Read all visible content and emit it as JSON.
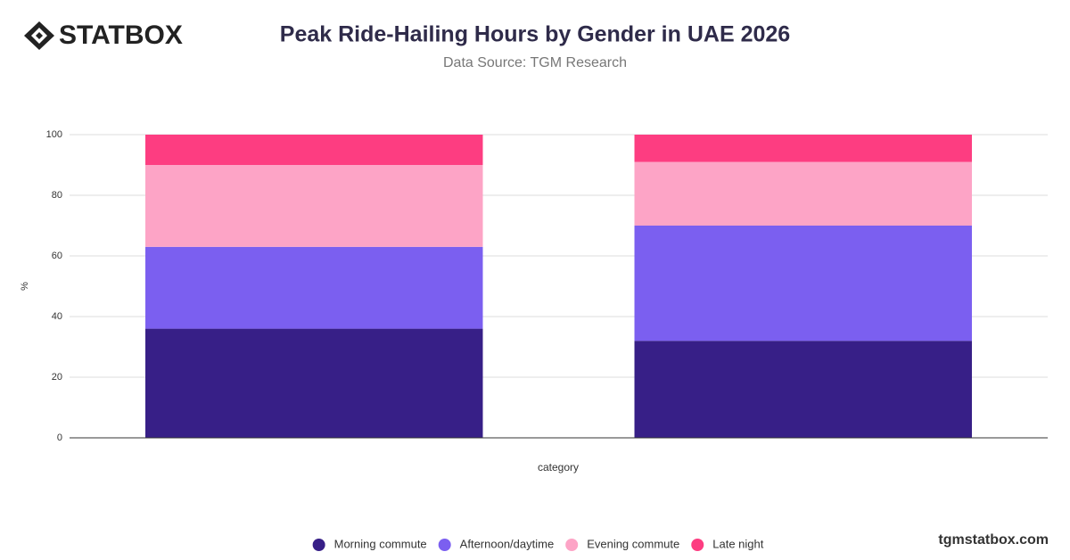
{
  "logo": "STATBOX",
  "footer": "tgmstatbox.com",
  "chart_data": {
    "type": "stacked-bar",
    "title": "Peak Ride-Hailing Hours by Gender in UAE 2026",
    "subtitle": "Data Source: TGM Research",
    "x_label": "category",
    "y_label": "%",
    "categories": [
      null,
      null
    ],
    "series": [
      {
        "name": "Morning commute",
        "color": "#371f87",
        "values": [
          36,
          32
        ]
      },
      {
        "name": "Afternoon/daytime",
        "color": "#7b5ff0",
        "values": [
          27,
          38
        ]
      },
      {
        "name": "Evening commute",
        "color": "#fda4c6",
        "values": [
          27,
          21
        ]
      },
      {
        "name": "Late night",
        "color": "#fd3d81",
        "values": [
          10,
          9
        ]
      }
    ],
    "ylim": [
      0,
      100
    ],
    "yticks": [
      0,
      20,
      40,
      60,
      80,
      100
    ],
    "grid": true,
    "legend": "bottom"
  }
}
